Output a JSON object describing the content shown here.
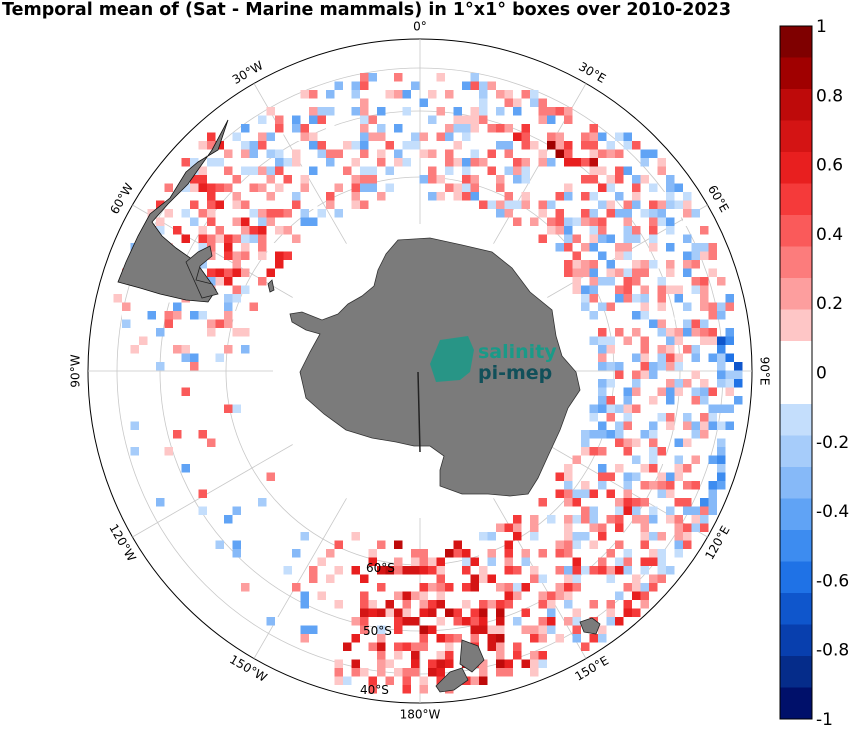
{
  "title": "Temporal mean of (Sat - Marine mammals) in 1°x1° boxes over 2010-2023",
  "projection": "south polar stereographic",
  "longitude_labels": [
    "0°",
    "30°E",
    "60°E",
    "90°E",
    "120°E",
    "150°E",
    "180°W",
    "150°W",
    "120°W",
    "90°W",
    "60°W",
    "30°W"
  ],
  "latitude_labels": [
    "60°S",
    "50°S",
    "40°S"
  ],
  "logo": {
    "line1": "salinity",
    "line2": "pi-mep"
  },
  "colorbar": {
    "min": -1,
    "max": 1,
    "ticks": [
      "1",
      "0.8",
      "0.6",
      "0.4",
      "0.2",
      "0",
      "-0.2",
      "-0.4",
      "-0.6",
      "-0.8",
      "-1"
    ],
    "colors": [
      "#7f0000",
      "#a00000",
      "#be0a0a",
      "#d41414",
      "#e81f1f",
      "#f53a3a",
      "#fa5a5a",
      "#fc7c7c",
      "#fd9e9e",
      "#fec6c6",
      "#ffffff",
      "#ffffff",
      "#c4defc",
      "#a6ccfa",
      "#86b9f8",
      "#60a3f5",
      "#3d8cf0",
      "#1f72e6",
      "#0f56cc",
      "#083fae",
      "#052c8a",
      "#00106a"
    ]
  },
  "colors": {
    "land": "#7b7b7b",
    "grid": "#c8c8c8",
    "logo_accent": "#1a9a88",
    "logo_text_dark": "#11505a"
  }
}
